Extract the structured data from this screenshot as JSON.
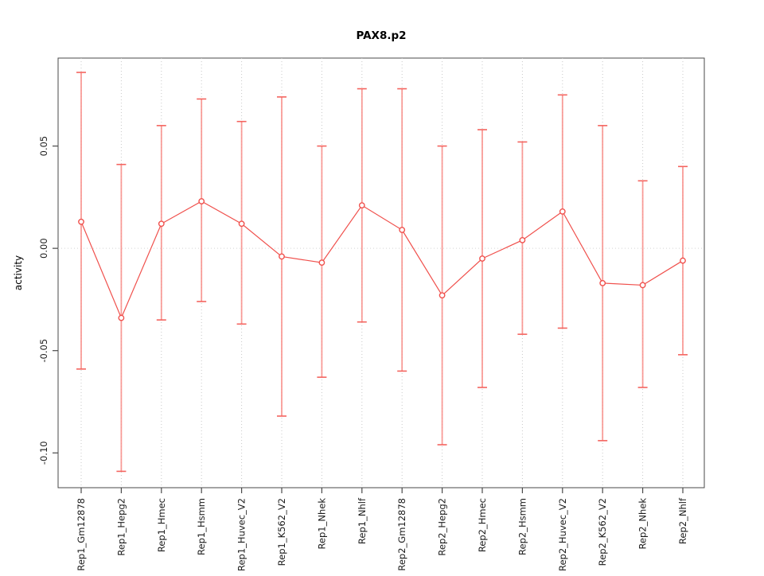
{
  "chart_data": {
    "type": "line",
    "title": "PAX8.p2",
    "xlabel": "",
    "ylabel": "activity",
    "legend": "none",
    "grid": "dotted vertical gridline at each category; dotted horizontal line at y=0",
    "categories": [
      "Rep1_Gm12878",
      "Rep1_Hepg2",
      "Rep1_Hmec",
      "Rep1_Hsmm",
      "Rep1_Huvec_V2",
      "Rep1_K562_V2",
      "Rep1_Nhek",
      "Rep1_Nhlf",
      "Rep2_Gm12878",
      "Rep2_Hepg2",
      "Rep2_Hmec",
      "Rep2_Hsmm",
      "Rep2_Huvec_V2",
      "Rep2_K562_V2",
      "Rep2_Nhek",
      "Rep2_Nhlf"
    ],
    "series": [
      {
        "name": "activity",
        "values": [
          0.013,
          -0.034,
          0.012,
          0.023,
          0.012,
          -0.004,
          -0.007,
          0.021,
          0.009,
          -0.023,
          -0.005,
          0.004,
          0.018,
          -0.017,
          -0.018,
          -0.006
        ]
      }
    ],
    "error_upper": [
      0.086,
      0.041,
      0.06,
      0.073,
      0.062,
      0.074,
      0.05,
      0.078,
      0.078,
      0.05,
      0.058,
      0.052,
      0.075,
      0.06,
      0.033,
      0.04
    ],
    "error_lower": [
      -0.059,
      -0.109,
      -0.035,
      -0.026,
      -0.037,
      -0.082,
      -0.063,
      -0.036,
      -0.06,
      -0.096,
      -0.068,
      -0.042,
      -0.039,
      -0.094,
      -0.068,
      -0.052
    ],
    "ylim": [
      -0.117,
      0.093
    ],
    "yticks": [
      -0.1,
      -0.05,
      0.0,
      0.05
    ],
    "ytick_labels": [
      "-0.10",
      "-0.05",
      "0.00",
      "0.05"
    ],
    "colors": {
      "point": "#f0504c",
      "line": "#f0504c",
      "error_bar": "#f88b87",
      "error_cap": "#f4645f",
      "gridline": "#c9c9c9",
      "zero_line": "#d4d4d4",
      "axis": "#4a4a4a",
      "background": "#ffffff"
    }
  }
}
